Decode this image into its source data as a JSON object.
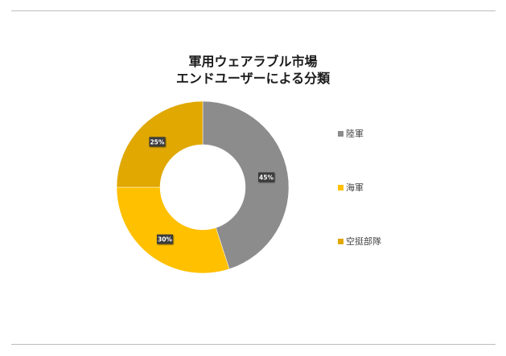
{
  "chart_data": {
    "type": "pie",
    "variant": "donut",
    "title": [
      "軍用ウェアラブル市場",
      "エンドユーザーによる分類"
    ],
    "categories": [
      "陸軍",
      "海軍",
      "空挺部隊"
    ],
    "values": [
      45,
      30,
      25
    ],
    "value_labels": [
      "45%",
      "30%",
      "25%"
    ],
    "colors": [
      "#8c8c8c",
      "#ffc000",
      "#e0a800"
    ],
    "legend_position": "right"
  }
}
